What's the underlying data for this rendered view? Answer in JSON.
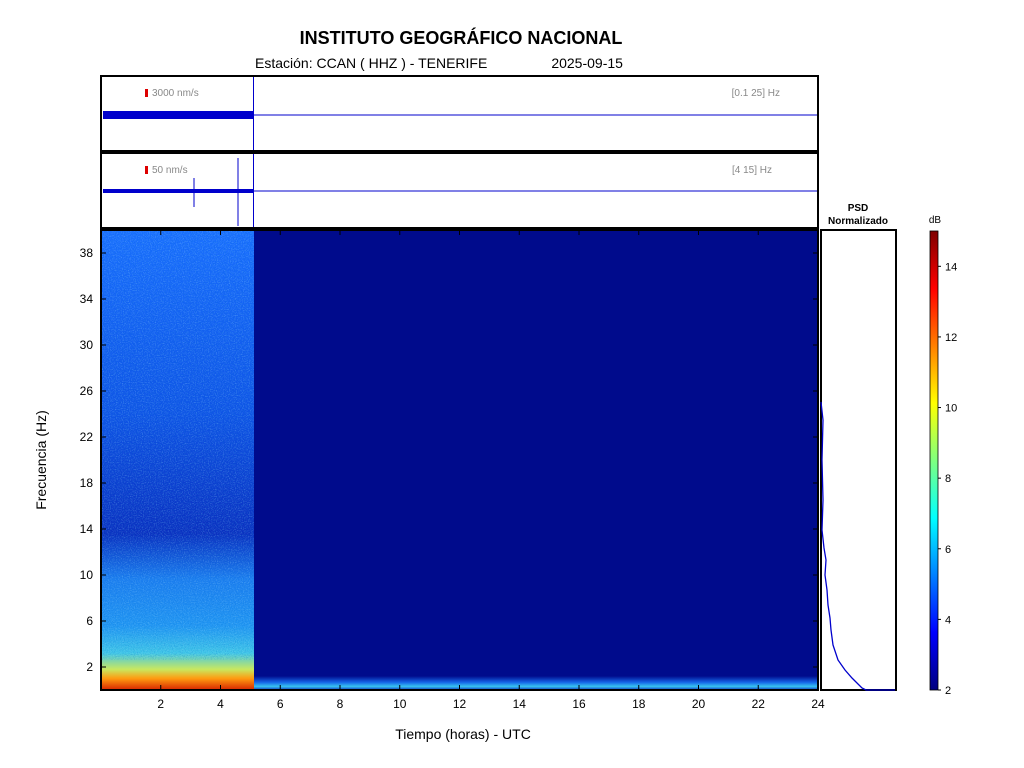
{
  "header": {
    "title": "INSTITUTO GEOGRÁFICO NACIONAL",
    "station": "Estación:  CCAN ( HHZ ) - TENERIFE",
    "date": "2025-09-15"
  },
  "trace_panels": [
    {
      "scale_label": "3000 nm/s",
      "band_label": "[0.1 25] Hz"
    },
    {
      "scale_label": "50 nm/s",
      "band_label": "[4 15] Hz"
    }
  ],
  "psd": {
    "title_line1": "PSD",
    "title_line2": "Normalizado"
  },
  "colorbar": {
    "unit": "dB",
    "range": [
      2,
      15
    ],
    "ticks": [
      2,
      4,
      6,
      8,
      10,
      12,
      14
    ],
    "colormap": "jet"
  },
  "colors": {
    "trace": "#0000cc",
    "background_low": "#000b8c",
    "scale_marker": "#dd0000"
  },
  "chart_data": {
    "type": "heatmap",
    "title": "INSTITUTO GEOGRÁFICO NACIONAL",
    "xlabel": "Tiempo (horas) - UTC",
    "ylabel": "Frecuencia  (Hz)",
    "xlim": [
      0,
      24
    ],
    "ylim": [
      0,
      40
    ],
    "xticks": [
      2,
      4,
      6,
      8,
      10,
      12,
      14,
      16,
      18,
      20,
      22,
      24
    ],
    "yticks": [
      2,
      6,
      10,
      14,
      18,
      22,
      26,
      30,
      34,
      38
    ],
    "data_end_hour": 5.1,
    "color_unit": "dB",
    "color_range": [
      2,
      15
    ],
    "grid": false
  }
}
